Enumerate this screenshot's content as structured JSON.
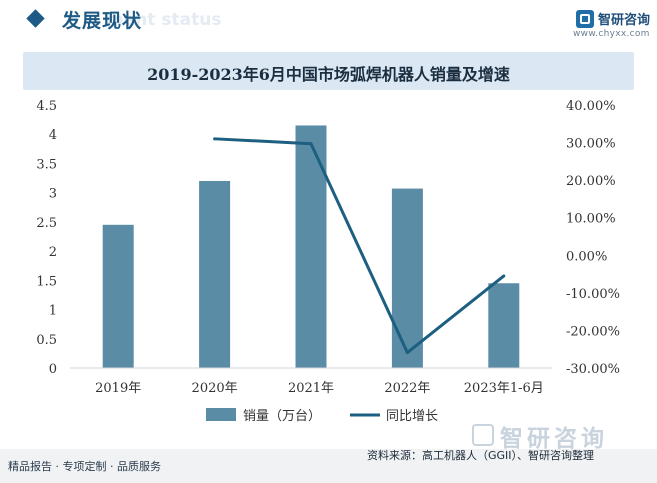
{
  "header": {
    "title": "发展现状",
    "subtitle_watermark": "ment status",
    "brand_name": "智研咨询",
    "brand_url": "www.chyxx.com"
  },
  "footer": {
    "left_text": "精品报告 · 专项定制 · 品质服务",
    "source": "资料来源：高工机器人（GGII）、智研咨询整理",
    "brand": "智研咨询"
  },
  "colors": {
    "bar": "#5b8ca6",
    "line": "#1d5f80",
    "title_bg": "#dbe8f3",
    "accent": "#1e5a86"
  },
  "chart_data": {
    "type": "bar",
    "title": "2019-2023年6月中国市场弧焊机器人销量及增速",
    "categories": [
      "2019年",
      "2020年",
      "2021年",
      "2022年",
      "2023年1-6月"
    ],
    "series": [
      {
        "name": "销量（万台）",
        "type": "bar",
        "axis": "left",
        "values": [
          2.45,
          3.2,
          4.15,
          3.07,
          1.45
        ]
      },
      {
        "name": "同比增长",
        "type": "line",
        "axis": "right",
        "values": [
          null,
          31.0,
          29.7,
          -25.9,
          -5.5
        ]
      }
    ],
    "y_left": {
      "lim": [
        0,
        4.5
      ],
      "ticks": [
        "0",
        "0.5",
        "1",
        "1.5",
        "2",
        "2.5",
        "3",
        "3.5",
        "4",
        "4.5"
      ]
    },
    "y_right": {
      "lim": [
        -30,
        40
      ],
      "ticks": [
        "-30.00%",
        "-20.00%",
        "-10.00%",
        "0.00%",
        "10.00%",
        "20.00%",
        "30.00%",
        "40.00%"
      ]
    },
    "legend_position": "bottom",
    "grid": false
  }
}
